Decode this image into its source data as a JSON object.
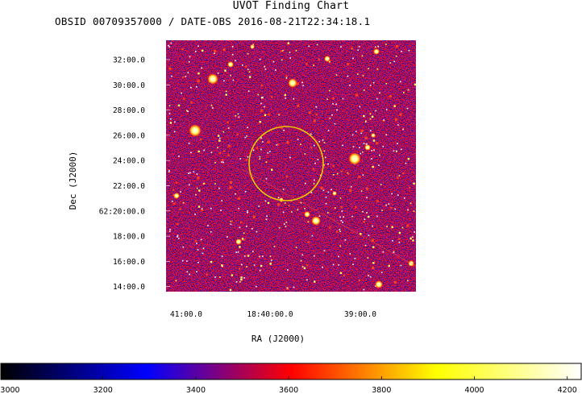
{
  "chart_data": {
    "type": "heatmap",
    "title": "UVOT Finding Chart",
    "subtitle": "OBSID 00709357000 / DATE-OBS 2016-08-21T22:34:18.1",
    "xlabel": "RA (J2000)",
    "ylabel": "Dec (J2000)",
    "x_ticks": [
      "41:00.0",
      "18:40:00.0",
      "39:00.0"
    ],
    "y_ticks": [
      "32:00.0",
      "30:00.0",
      "28:00.0",
      "26:00.0",
      "24:00.0",
      "22:00.0",
      "62:20:00.0",
      "18:00.0",
      "16:00.0",
      "14:00.0"
    ],
    "colorbar": {
      "ticks": [
        3000,
        3200,
        3400,
        3600,
        3800,
        4000,
        4200
      ],
      "range": [
        2980,
        4230
      ],
      "colors": [
        "#000000",
        "#0000ff",
        "#ff0000",
        "#ffff00",
        "#ffffff"
      ]
    },
    "region": {
      "shape": "circle",
      "color": "#f0c800"
    },
    "grid": false
  }
}
